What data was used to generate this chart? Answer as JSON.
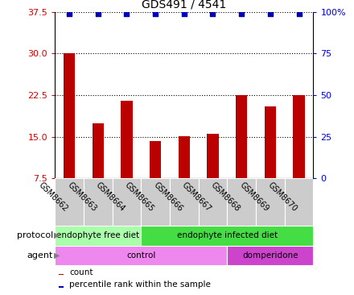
{
  "title": "GDS491 / 4541",
  "samples": [
    "GSM8662",
    "GSM8663",
    "GSM8664",
    "GSM8665",
    "GSM8666",
    "GSM8667",
    "GSM8668",
    "GSM8669",
    "GSM8670"
  ],
  "counts": [
    30.0,
    17.5,
    21.5,
    14.2,
    15.1,
    15.5,
    22.5,
    20.5,
    22.5
  ],
  "percentiles": [
    99,
    99,
    99,
    99,
    99,
    99,
    99,
    99,
    99
  ],
  "ylim_left": [
    7.5,
    37.5
  ],
  "yticks_left": [
    7.5,
    15.0,
    22.5,
    30.0,
    37.5
  ],
  "yticks_right": [
    0,
    25,
    50,
    75,
    100
  ],
  "ylim_right": [
    0,
    100
  ],
  "bar_color": "#bb0000",
  "dot_color": "#0000bb",
  "protocol_groups": [
    {
      "label": "endophyte free diet",
      "start": 0,
      "end": 3,
      "color": "#aaffaa"
    },
    {
      "label": "endophyte infected diet",
      "start": 3,
      "end": 9,
      "color": "#44dd44"
    }
  ],
  "agent_groups": [
    {
      "label": "control",
      "start": 0,
      "end": 6,
      "color": "#ee88ee"
    },
    {
      "label": "domperidone",
      "start": 6,
      "end": 9,
      "color": "#cc44cc"
    }
  ],
  "legend_items": [
    {
      "label": "count",
      "color": "#bb0000"
    },
    {
      "label": "percentile rank within the sample",
      "color": "#0000bb"
    }
  ],
  "tick_color_left": "#cc0000",
  "tick_color_right": "#0000cc",
  "xlabel_gray": "#bbbbbb",
  "bar_width": 0.4
}
